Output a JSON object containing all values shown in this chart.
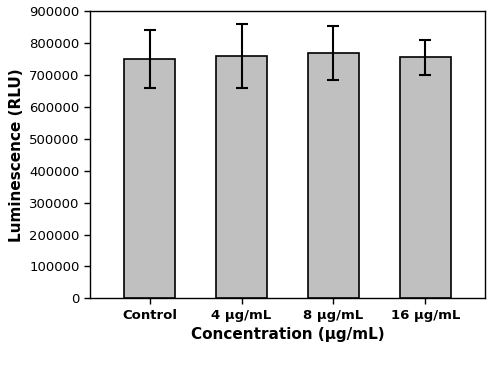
{
  "categories": [
    "Control",
    "4 μg/mL",
    "8 μg/mL",
    "16 μg/mL"
  ],
  "values": [
    750000,
    760000,
    770000,
    755000
  ],
  "errors": [
    90000,
    100000,
    85000,
    55000
  ],
  "bar_color": "#c0c0c0",
  "bar_edgecolor": "#000000",
  "bar_linewidth": 1.2,
  "error_capsize": 4,
  "error_linewidth": 1.5,
  "error_color": "black",
  "xlabel": "Concentration (μg/mL)",
  "ylabel": "Luminescence (RLU)",
  "ylim": [
    0,
    900000
  ],
  "yticks": [
    0,
    100000,
    200000,
    300000,
    400000,
    500000,
    600000,
    700000,
    800000,
    900000
  ],
  "xlabel_fontsize": 11,
  "ylabel_fontsize": 11,
  "tick_fontsize": 9.5,
  "bar_width": 0.55,
  "background_color": "#ffffff",
  "spine_linewidth": 1.0,
  "figsize": [
    5.0,
    3.73
  ],
  "dpi": 100
}
